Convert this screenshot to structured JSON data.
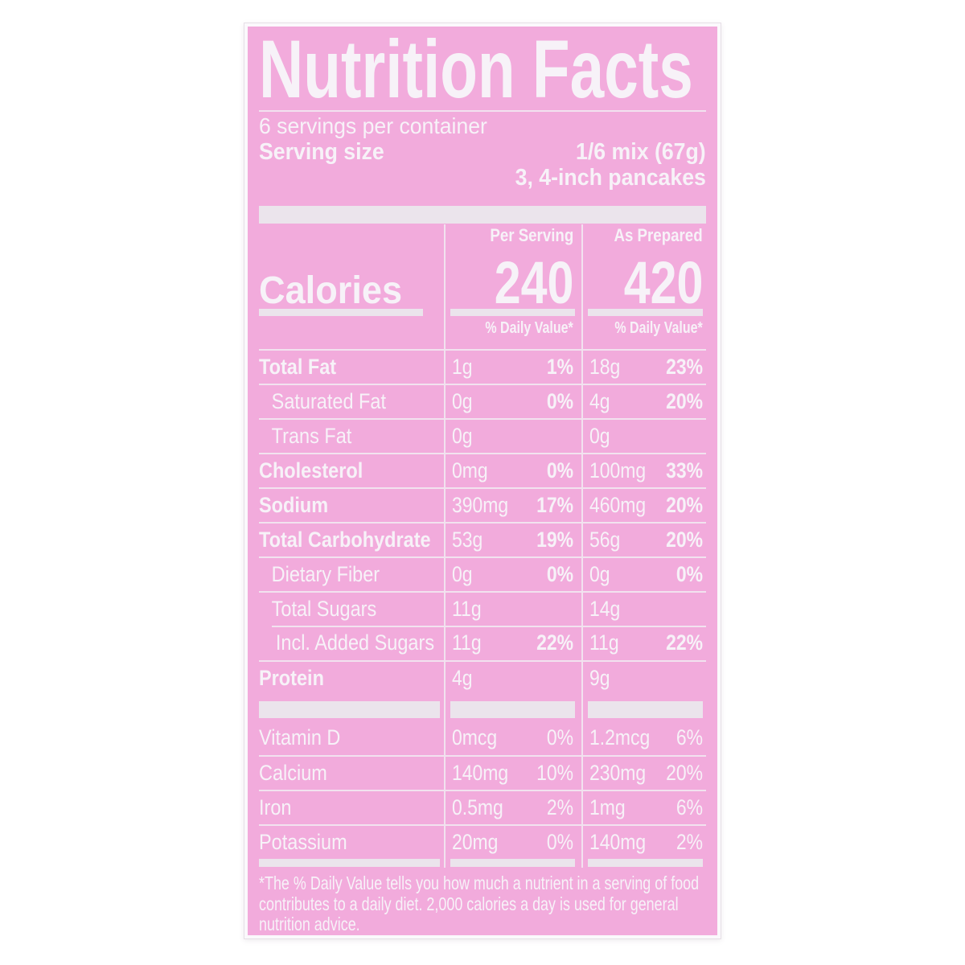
{
  "colors": {
    "label_pink": "#f2abdc",
    "text_white": "#f7f2f8",
    "bar_white": "#ebe4ec",
    "line_white": "#f2e2ef",
    "page_bg": "#ffffff"
  },
  "label": {
    "title": "Nutrition Facts",
    "servings_per_container": "6 servings per container",
    "serving_size": {
      "label": "Serving size",
      "value": "1/6 mix (67g)",
      "detail": "3, 4-inch pancakes"
    },
    "column_headers": {
      "per_serving": "Per Serving",
      "as_prepared": "As Prepared"
    },
    "calories": {
      "label": "Calories",
      "per_serving": "240",
      "as_prepared": "420"
    },
    "daily_value_header": "% Daily Value*",
    "rows": [
      {
        "name": "Total Fat",
        "bold": true,
        "indent": 0,
        "v1": "1g",
        "p1": "1%",
        "v2": "18g",
        "p2": "23%"
      },
      {
        "name": "Saturated Fat",
        "bold": false,
        "indent": 1,
        "v1": "0g",
        "p1": "0%",
        "v2": "4g",
        "p2": "20%"
      },
      {
        "name": "Trans Fat",
        "bold": false,
        "indent": 1,
        "v1": "0g",
        "p1": "",
        "v2": "0g",
        "p2": ""
      },
      {
        "name": "Cholesterol",
        "bold": true,
        "indent": 0,
        "v1": "0mg",
        "p1": "0%",
        "v2": "100mg",
        "p2": "33%"
      },
      {
        "name": "Sodium",
        "bold": true,
        "indent": 0,
        "v1": "390mg",
        "p1": "17%",
        "v2": "460mg",
        "p2": "20%"
      },
      {
        "name": "Total Carbohydrate",
        "bold": true,
        "indent": 0,
        "v1": "53g",
        "p1": "19%",
        "v2": "56g",
        "p2": "20%"
      },
      {
        "name": "Dietary Fiber",
        "bold": false,
        "indent": 1,
        "v1": "0g",
        "p1": "0%",
        "v2": "0g",
        "p2": "0%"
      },
      {
        "name": "Total Sugars",
        "bold": false,
        "indent": 1,
        "v1": "11g",
        "p1": "",
        "v2": "14g",
        "p2": ""
      },
      {
        "name": "Incl. Added Sugars",
        "bold": false,
        "indent": 2,
        "v1": "11g",
        "p1": "22%",
        "v2": "11g",
        "p2": "22%",
        "sub_rule": true
      },
      {
        "name": "Protein",
        "bold": true,
        "indent": 0,
        "v1": "4g",
        "p1": "",
        "v2": "9g",
        "p2": ""
      }
    ],
    "vitamins": [
      {
        "name": "Vitamin D",
        "v1": "0mcg",
        "p1": "0%",
        "v2": "1.2mcg",
        "p2": "6%"
      },
      {
        "name": "Calcium",
        "v1": "140mg",
        "p1": "10%",
        "v2": "230mg",
        "p2": "20%"
      },
      {
        "name": "Iron",
        "v1": "0.5mg",
        "p1": "2%",
        "v2": "1mg",
        "p2": "6%"
      },
      {
        "name": "Potassium",
        "v1": "20mg",
        "p1": "0%",
        "v2": "140mg",
        "p2": "2%"
      }
    ],
    "footnote": "*The % Daily Value tells you how much a nutrient in a serving of food contributes to a daily diet. 2,000 calories a day is used for general nutrition advice."
  }
}
